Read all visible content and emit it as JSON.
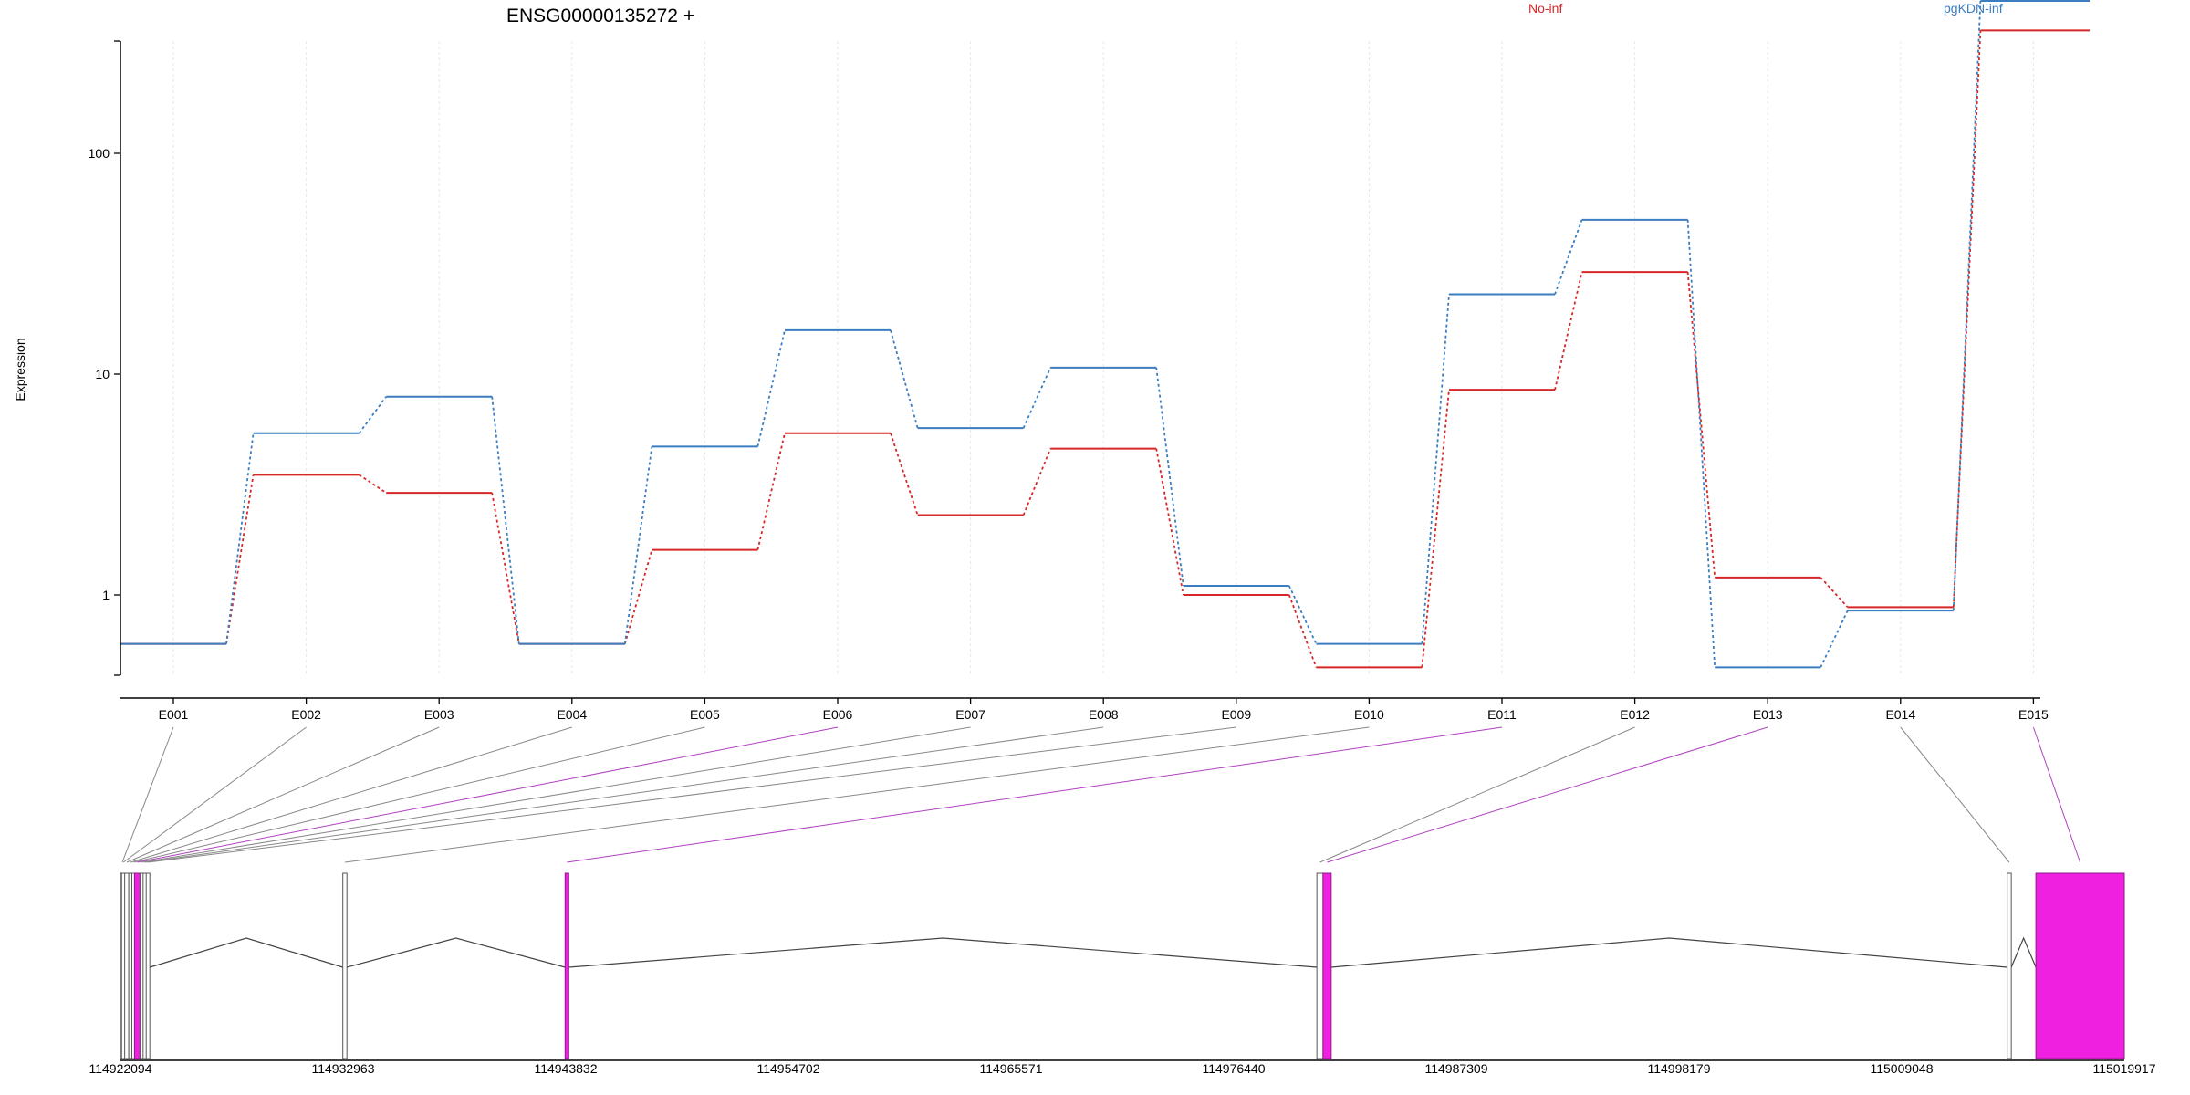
{
  "chart_data": {
    "type": "line",
    "title": "ENSG00000135272 +",
    "ylabel": "Expression",
    "xlabel": "",
    "y_scale": "log",
    "ylim": [
      0.4,
      600
    ],
    "y_ticks": [
      {
        "value": 1,
        "label": "1"
      },
      {
        "value": 10,
        "label": "10"
      },
      {
        "value": 100,
        "label": "100"
      }
    ],
    "categories": [
      "E001",
      "E002",
      "E003",
      "E004",
      "E005",
      "E006",
      "E007",
      "E008",
      "E009",
      "E010",
      "E011",
      "E012",
      "E013",
      "E014",
      "E015"
    ],
    "legend_position": "top",
    "vertical_grid": true,
    "series": [
      {
        "name": "No-inf",
        "color": "#d62728",
        "values": [
          0.6,
          3.5,
          2.9,
          0.6,
          1.6,
          5.4,
          2.3,
          4.6,
          1.0,
          0.47,
          8.5,
          29.0,
          1.2,
          0.88,
          360.0
        ]
      },
      {
        "name": "pgKDN-inf",
        "color": "#3b7dbf",
        "values": [
          0.6,
          5.4,
          7.9,
          0.6,
          4.7,
          15.8,
          5.7,
          10.7,
          1.1,
          0.6,
          23.0,
          50.0,
          0.47,
          0.85,
          490.0
        ]
      }
    ],
    "highlighted_exons": [
      "E006",
      "E011",
      "E013",
      "E015"
    ],
    "gene_model": {
      "coord_range": [
        114922094,
        115019917
      ],
      "tick_labels": [
        "114922094",
        "114932963",
        "114943832",
        "114954702",
        "114965571",
        "114976440",
        "114987309",
        "114998179",
        "115009048",
        "115019917"
      ],
      "highlight_color": "#f020e0",
      "exons": [
        {
          "id": "E001",
          "start": 114922094,
          "end": 114922150
        },
        {
          "id": "E002",
          "start": 114922150,
          "end": 114922300
        },
        {
          "id": "E003",
          "start": 114922300,
          "end": 114922500
        },
        {
          "id": "E004",
          "start": 114922500,
          "end": 114922650
        },
        {
          "id": "E005",
          "start": 114922650,
          "end": 114922780
        },
        {
          "id": "E006",
          "start": 114922780,
          "end": 114923050
        },
        {
          "id": "E007",
          "start": 114923050,
          "end": 114923200
        },
        {
          "id": "E008",
          "start": 114923200,
          "end": 114923350
        },
        {
          "id": "E009",
          "start": 114923350,
          "end": 114923500
        },
        {
          "id": "E010",
          "start": 114932950,
          "end": 114933150
        },
        {
          "id": "E011",
          "start": 114943800,
          "end": 114943980
        },
        {
          "id": "E012",
          "start": 114980500,
          "end": 114980800
        },
        {
          "id": "E013",
          "start": 114980800,
          "end": 114981200
        },
        {
          "id": "E014",
          "start": 115014200,
          "end": 115014400
        },
        {
          "id": "E015",
          "start": 115015600,
          "end": 115019917
        }
      ]
    }
  }
}
